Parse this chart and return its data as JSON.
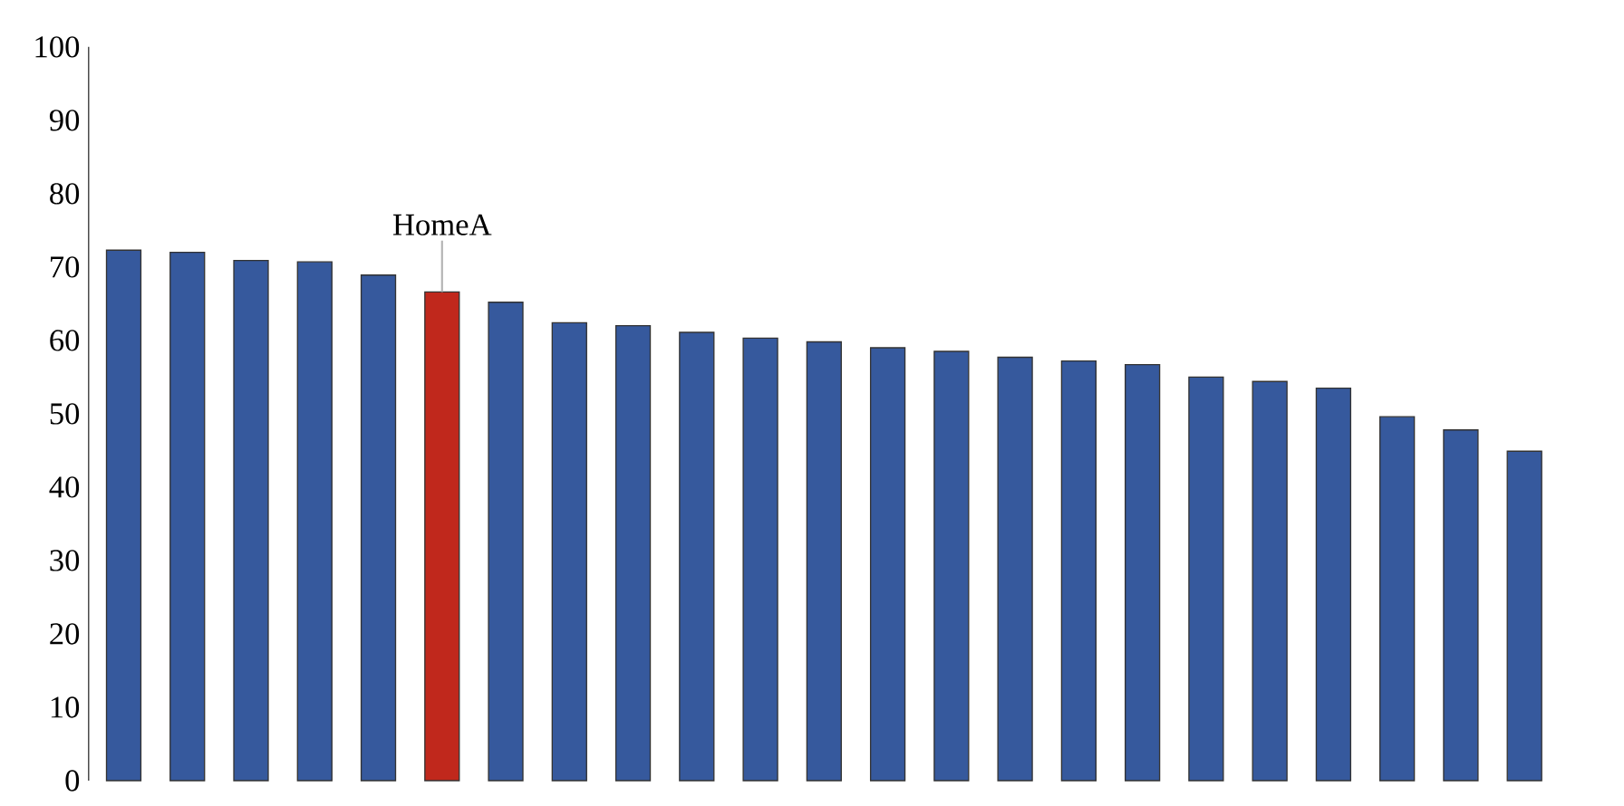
{
  "chart_data": {
    "type": "bar",
    "categories": [
      null,
      null,
      null,
      null,
      null,
      null,
      null,
      null,
      null,
      null,
      null,
      null,
      null,
      null,
      null,
      null,
      null,
      null,
      null,
      null,
      null,
      null,
      null
    ],
    "values": [
      72.3,
      72.0,
      70.9,
      70.7,
      68.9,
      66.6,
      65.2,
      62.4,
      62.0,
      61.1,
      60.3,
      59.8,
      59.0,
      58.5,
      57.7,
      57.2,
      56.7,
      55.0,
      54.4,
      53.5,
      49.6,
      47.8,
      44.9
    ],
    "colors": [
      "#36599d",
      "#36599d",
      "#36599d",
      "#36599d",
      "#36599d",
      "#c0281c",
      "#36599d",
      "#36599d",
      "#36599d",
      "#36599d",
      "#36599d",
      "#36599d",
      "#36599d",
      "#36599d",
      "#36599d",
      "#36599d",
      "#36599d",
      "#36599d",
      "#36599d",
      "#36599d",
      "#36599d",
      "#36599d",
      "#36599d"
    ],
    "ylim": [
      0,
      100
    ],
    "yticks": [
      0,
      10,
      20,
      30,
      40,
      50,
      60,
      70,
      80,
      90,
      100
    ],
    "annotations": [
      {
        "text": "HomeA",
        "y": 66.6
      }
    ]
  }
}
